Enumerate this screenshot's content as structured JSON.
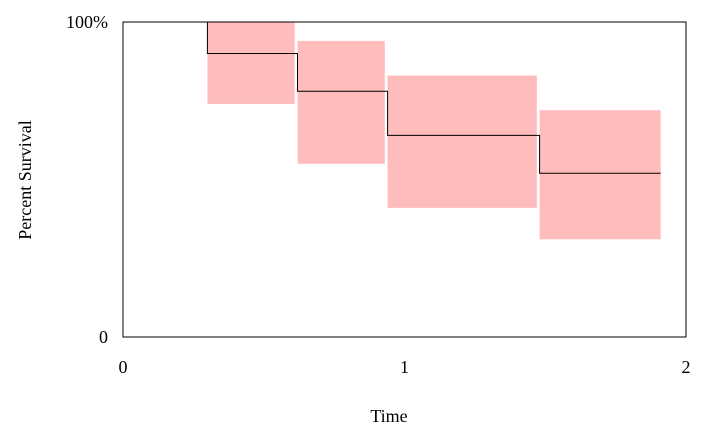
{
  "chart_data": {
    "type": "area",
    "title": "",
    "xlabel": "Time",
    "ylabel": "Percent Survival",
    "xlim": [
      0,
      2
    ],
    "ylim": [
      0,
      100
    ],
    "x_ticks": [
      {
        "value": 0,
        "label": "0"
      },
      {
        "value": 1,
        "label": "1"
      },
      {
        "value": 2,
        "label": "2"
      }
    ],
    "y_ticks": [
      {
        "value": 0,
        "label": "0"
      },
      {
        "value": 100,
        "label": "100%"
      }
    ],
    "grid": false,
    "legend": "none",
    "colors": {
      "band": "#ffbcbc",
      "line": "#000000",
      "frame": "#000000"
    },
    "series": [
      {
        "kind": "step",
        "points": [
          {
            "x": 0.3,
            "y": 100
          },
          {
            "x": 0.3,
            "y": 90
          },
          {
            "x": 0.62,
            "y": 90
          },
          {
            "x": 0.62,
            "y": 78
          },
          {
            "x": 0.94,
            "y": 78
          },
          {
            "x": 0.94,
            "y": 64
          },
          {
            "x": 1.48,
            "y": 64
          },
          {
            "x": 1.48,
            "y": 52
          },
          {
            "x": 1.91,
            "y": 52
          }
        ]
      }
    ],
    "confidence_bands": [
      {
        "x0": 0.3,
        "x1": 0.61,
        "lower": 74,
        "upper": 100
      },
      {
        "x0": 0.62,
        "x1": 0.93,
        "lower": 55,
        "upper": 94
      },
      {
        "x0": 0.94,
        "x1": 1.47,
        "lower": 41,
        "upper": 83
      },
      {
        "x0": 1.48,
        "x1": 1.91,
        "lower": 31,
        "upper": 72
      }
    ]
  }
}
